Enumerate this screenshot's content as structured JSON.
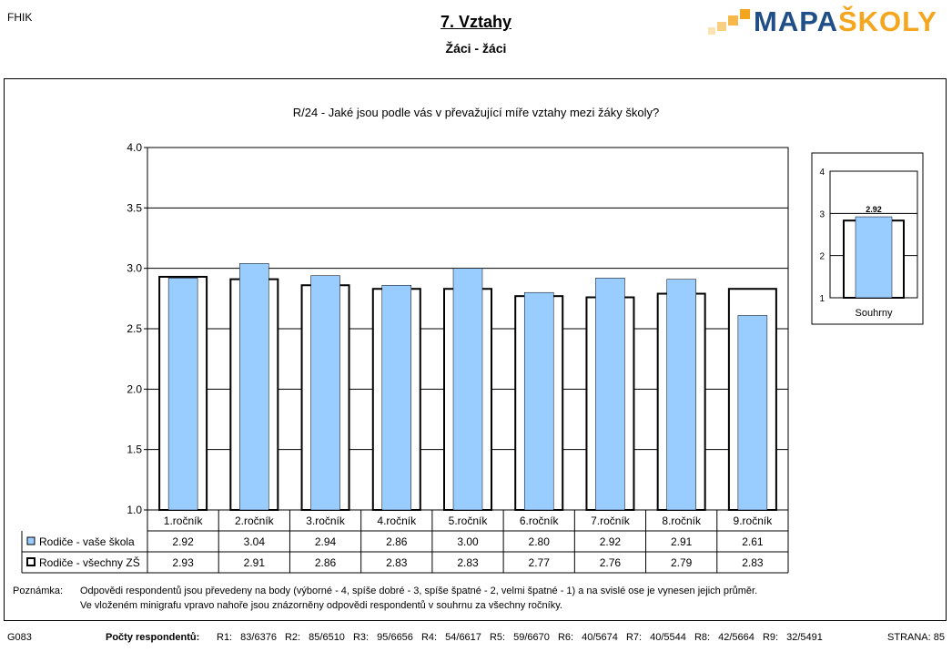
{
  "header": {
    "school_code": "FHIK",
    "title": "7. Vztahy",
    "subtitle": "Žáci - žáci",
    "logo_part1": "MAPA",
    "logo_part2": "ŠKOLY"
  },
  "colors": {
    "series1": "#99ccff",
    "series2": "#ffffff",
    "logo_blue": "#1f4f86",
    "logo_orange": "#f5a51e"
  },
  "chart_data": [
    {
      "type": "bar",
      "title": "R/24 - Jaké jsou podle vás v převažující míře vztahy mezi žáky školy?",
      "categories": [
        "1.ročník",
        "2.ročník",
        "3.ročník",
        "4.ročník",
        "5.ročník",
        "6.ročník",
        "7.ročník",
        "8.ročník",
        "9.ročník"
      ],
      "series": [
        {
          "name": "Rodiče - vaše škola",
          "values": [
            2.92,
            3.04,
            2.94,
            2.86,
            3.0,
            2.8,
            2.92,
            2.91,
            2.61
          ]
        },
        {
          "name": "Rodiče - všechny ZŠ",
          "values": [
            2.93,
            2.91,
            2.86,
            2.83,
            2.83,
            2.77,
            2.76,
            2.79,
            2.83
          ]
        }
      ],
      "ylim": [
        1.0,
        4.0
      ],
      "yticks": [
        "1.0",
        "1.5",
        "2.0",
        "2.5",
        "3.0",
        "3.5",
        "4.0"
      ],
      "grid": true,
      "legend": "data-table"
    },
    {
      "type": "bar",
      "categories": [
        "Souhrny"
      ],
      "series": [
        {
          "values": [
            2.92
          ]
        },
        {
          "values": [
            2.83
          ]
        }
      ],
      "data_label": "2.92",
      "ylim": [
        1,
        4
      ],
      "yticks": [
        "1",
        "2",
        "3",
        "4"
      ]
    }
  ],
  "note": {
    "label": "Poznámka:",
    "line1": "Odpovědi respondentů jsou převedeny na body (výborné - 4, spíše dobré - 3, spíše špatné - 2, velmi špatné - 1) a na svislé ose je vynesen jejich průměr.",
    "line2": "Ve vloženém minigrafu vpravo nahoře jsou znázorněny odpovědi respondentů v souhrnu za všechny ročníky."
  },
  "footer": {
    "code": "G083",
    "respondents_label": "Počty respondentů:",
    "counts": "R1: 83/6376  R2: 85/6510  R3: 95/6656  R4: 54/6617  R5: 59/6670  R6: 40/5674  R7: 40/5544  R8: 42/5664  R9: 32/5491",
    "page": "STRANA: 85"
  }
}
